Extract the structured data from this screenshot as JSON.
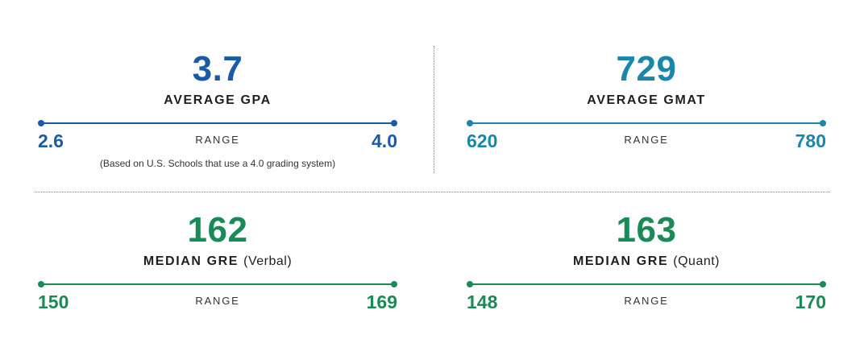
{
  "colors": {
    "blue": "#1a5ba6",
    "teal": "#1a87a8",
    "green": "#1a8a57"
  },
  "gpa": {
    "value": "3.7",
    "label": "AVERAGE GPA",
    "low": "2.6",
    "range_label": "RANGE",
    "high": "4.0",
    "note": "(Based on U.S. Schools that use a 4.0 grading system)"
  },
  "gmat": {
    "value": "729",
    "label": "AVERAGE GMAT",
    "low": "620",
    "range_label": "RANGE",
    "high": "780"
  },
  "gre_verbal": {
    "value": "162",
    "label": "MEDIAN GRE",
    "sublabel": "(Verbal)",
    "low": "150",
    "range_label": "RANGE",
    "high": "169"
  },
  "gre_quant": {
    "value": "163",
    "label": "MEDIAN GRE",
    "sublabel": "(Quant)",
    "low": "148",
    "range_label": "RANGE",
    "high": "170"
  }
}
